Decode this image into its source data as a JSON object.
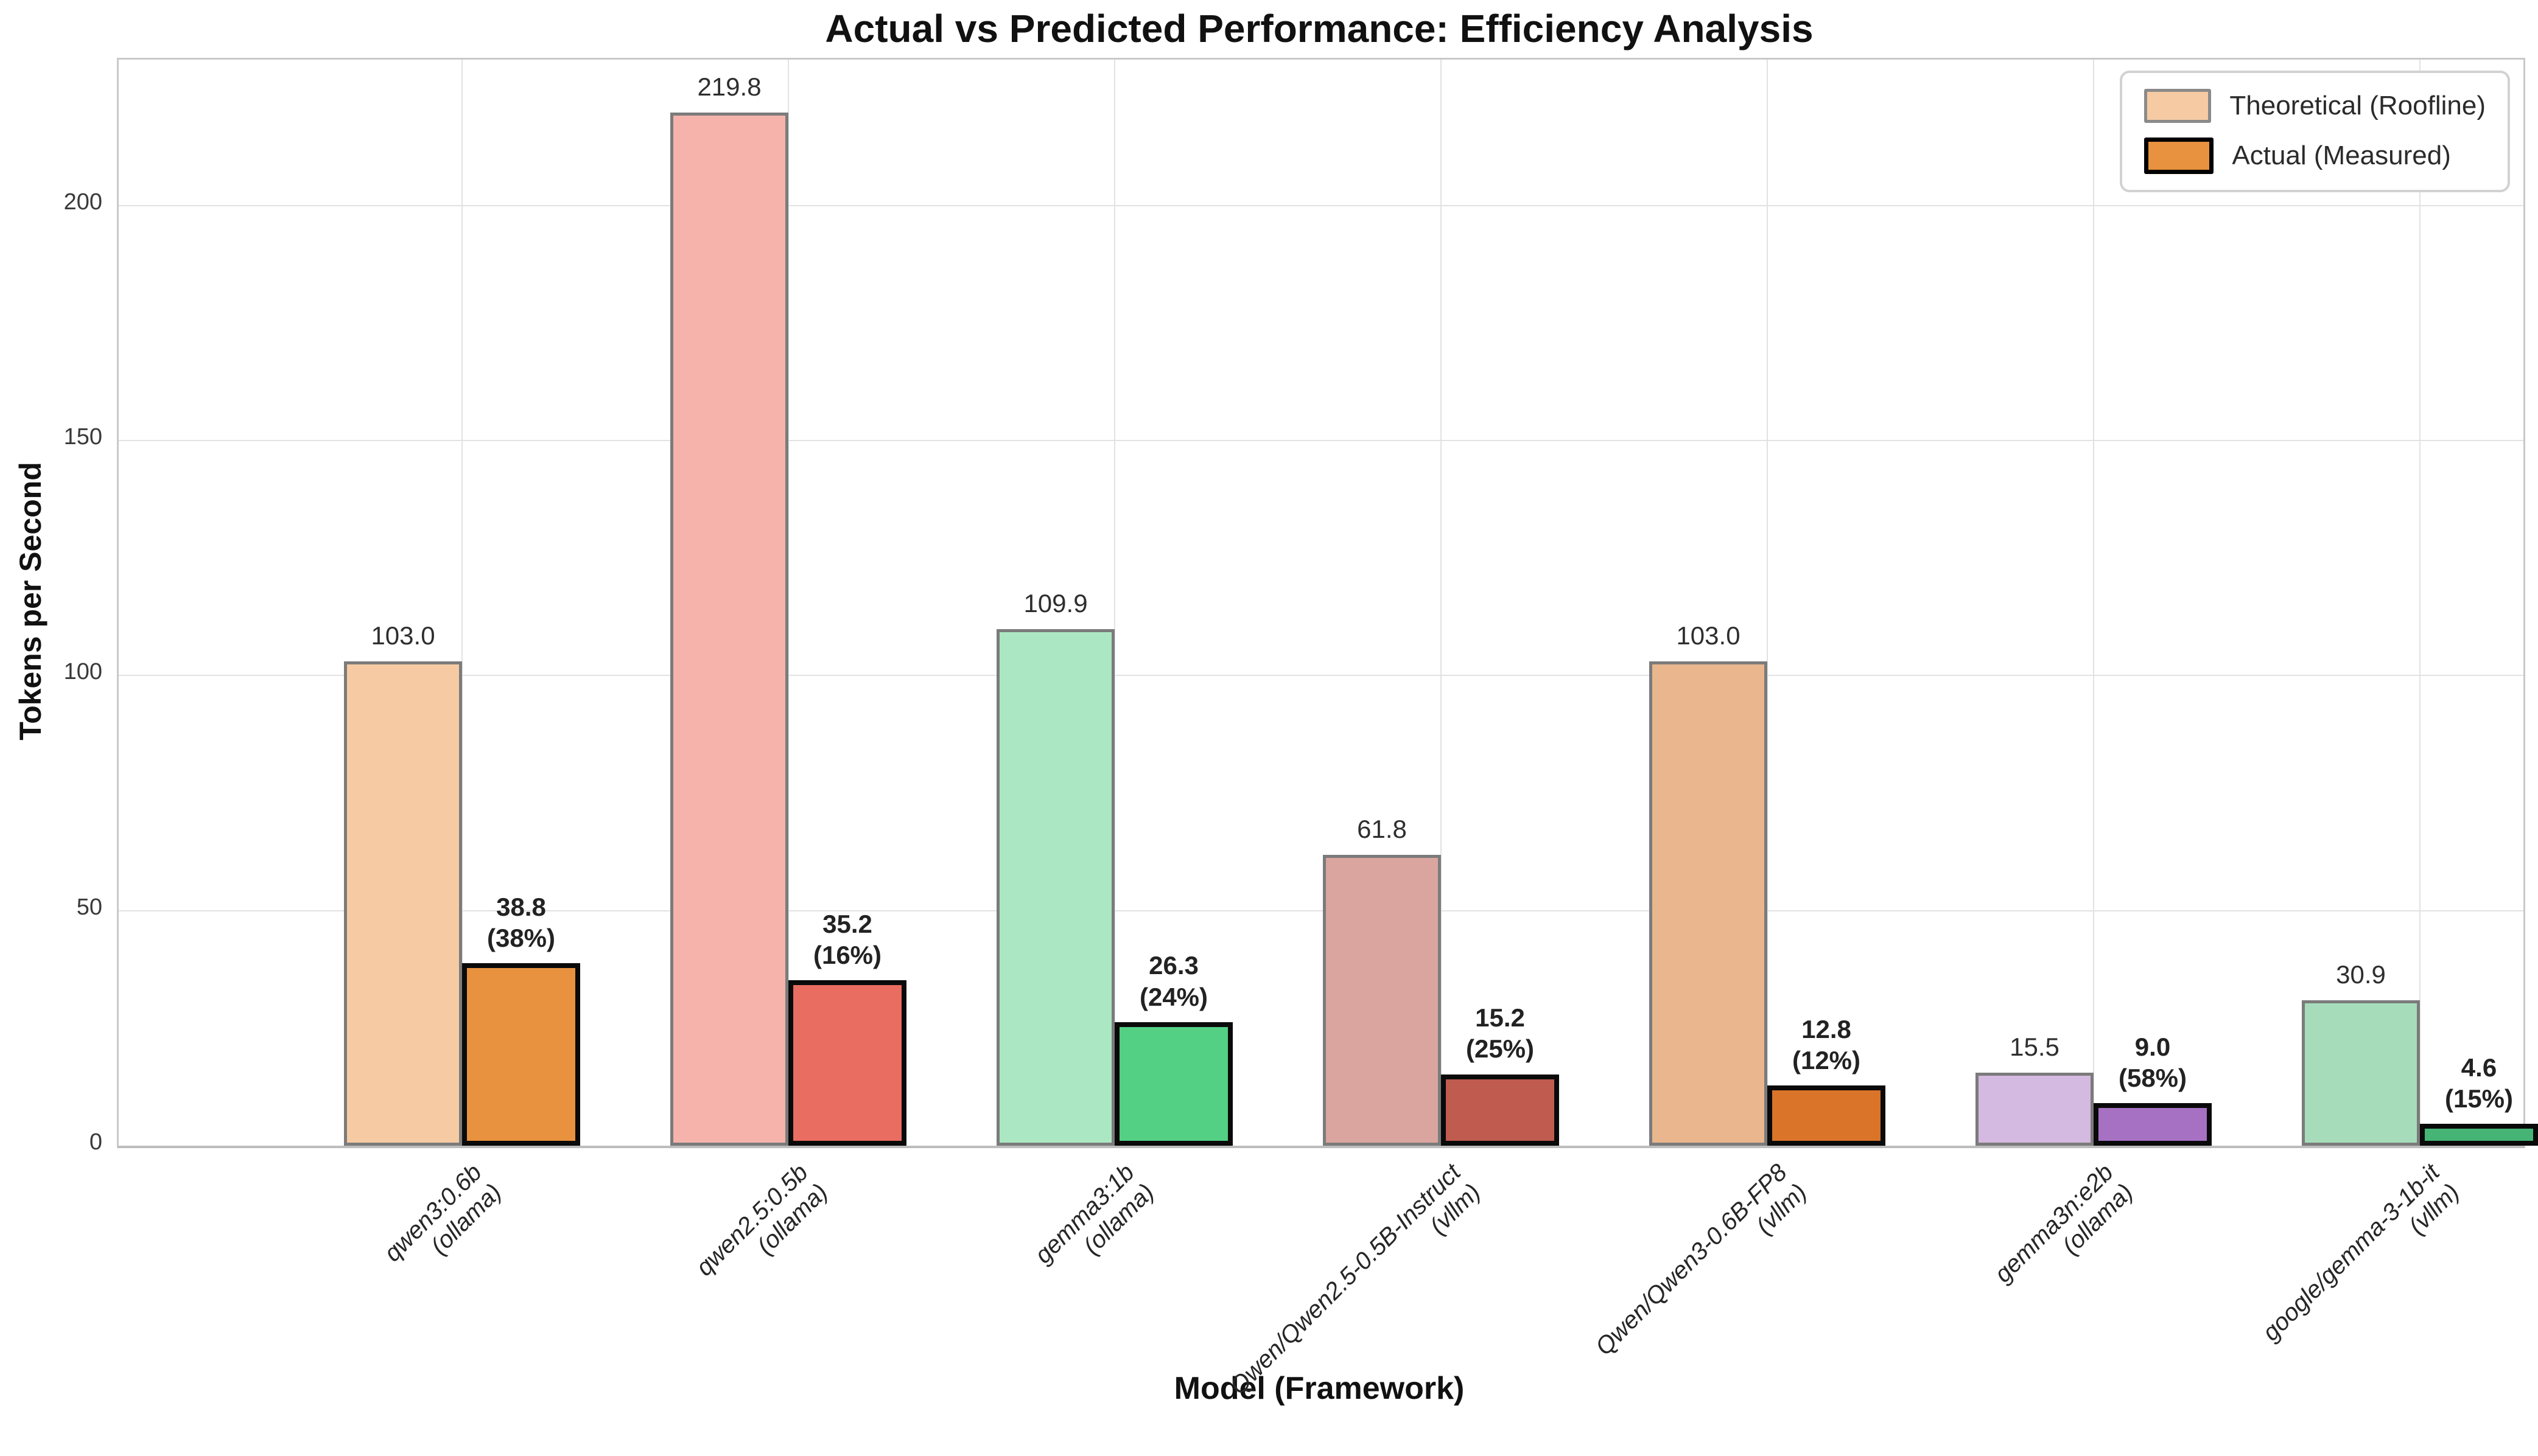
{
  "chart_data": {
    "type": "bar",
    "title": "Actual vs Predicted Performance: Efficiency Analysis",
    "xlabel": "Model (Framework)",
    "ylabel": "Tokens per Second",
    "ylim": [
      0,
      231
    ],
    "yticks": [
      0,
      50,
      100,
      150,
      200
    ],
    "grid": true,
    "legend_position": "upper right",
    "legend": [
      {
        "label": "Theoretical (Roofline)",
        "fill": "#f6cba3",
        "border": "#8a8a8a"
      },
      {
        "label": "Actual (Measured)",
        "fill": "#e8913e",
        "border": "#000000"
      }
    ],
    "series_names": [
      "Theoretical (Roofline)",
      "Actual (Measured)"
    ],
    "groups": [
      {
        "model": "qwen3:0.6b",
        "framework": "(ollama)",
        "theoretical": 103.0,
        "actual": 38.8,
        "efficiency_pct": 38,
        "theo_color": "#f6cba3",
        "actual_color": "#e8913e"
      },
      {
        "model": "qwen2.5:0.5b",
        "framework": "(ollama)",
        "theoretical": 219.8,
        "actual": 35.2,
        "efficiency_pct": 16,
        "theo_color": "#f5b3ab",
        "actual_color": "#e96d60"
      },
      {
        "model": "gemma3:1b",
        "framework": "(ollama)",
        "theoretical": 109.9,
        "actual": 26.3,
        "efficiency_pct": 24,
        "theo_color": "#ace7c3",
        "actual_color": "#54d085"
      },
      {
        "model": "Qwen/Qwen2.5-0.5B-Instruct",
        "framework": "(vllm)",
        "theoretical": 61.8,
        "actual": 15.2,
        "efficiency_pct": 25,
        "theo_color": "#daa59f",
        "actual_color": "#c05b50"
      },
      {
        "model": "Qwen/Qwen3-0.6B-FP8",
        "framework": "(vllm)",
        "theoretical": 103.0,
        "actual": 12.8,
        "efficiency_pct": 12,
        "theo_color": "#e9b68d",
        "actual_color": "#d97428"
      },
      {
        "model": "gemma3n:e2b",
        "framework": "(ollama)",
        "theoretical": 15.5,
        "actual": 9.0,
        "efficiency_pct": 58,
        "theo_color": "#d4b9e0",
        "actual_color": "#a671c3"
      },
      {
        "model": "google/gemma-3-1b-it",
        "framework": "(vllm)",
        "theoretical": 30.9,
        "actual": 4.6,
        "efficiency_pct": 15,
        "theo_color": "#a7dcbb",
        "actual_color": "#46b475"
      }
    ]
  }
}
